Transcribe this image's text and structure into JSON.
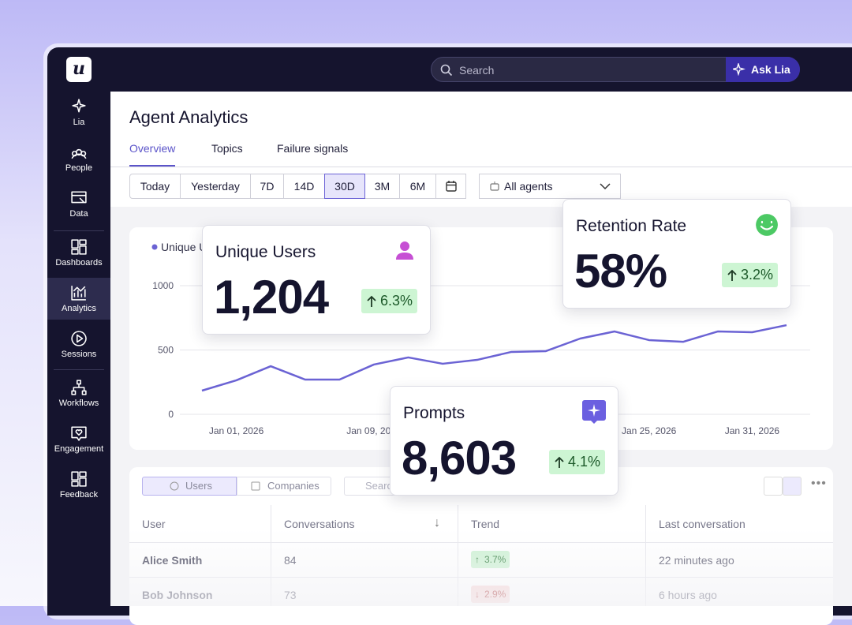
{
  "app": {
    "logo": "u",
    "search_placeholder": "Search",
    "ask_button": "Ask Lia"
  },
  "sidebar": {
    "items": [
      "Lia",
      "People",
      "Data",
      "Dashboards",
      "Analytics",
      "Sessions",
      "Workflows",
      "Engagement",
      "Feedback"
    ],
    "active": "Analytics"
  },
  "header": {
    "title": "Agent Analytics",
    "tabs": [
      "Overview",
      "Topics",
      "Failure signals"
    ],
    "active_tab": "Overview"
  },
  "filters": {
    "ranges": [
      "Today",
      "Yesterday",
      "7D",
      "14D",
      "30D",
      "3M",
      "6M"
    ],
    "active_range": "30D",
    "agent_select": "All agents"
  },
  "chart_data": {
    "type": "line",
    "categories": [
      null,
      "Jan 01, 2026",
      null,
      null,
      null,
      "Jan 09, 2026",
      null,
      null,
      null,
      null,
      null,
      null,
      null,
      "Jan 25, 2026",
      null,
      null,
      "Jan 31, 2026",
      null
    ],
    "series": [
      {
        "name": "Unique Users",
        "color": "#6b63d4",
        "values": [
          184,
          264,
          374,
          270,
          270,
          387,
          442,
          393,
          423,
          485,
          491,
          589,
          644,
          577,
          564,
          644,
          638,
          693
        ]
      }
    ],
    "ylim": [
      0,
      1000
    ],
    "yticks": [
      0,
      500,
      1000
    ],
    "grid": true
  },
  "kpis": [
    {
      "title": "Unique Users",
      "value": "1,204",
      "change": "6.3%",
      "direction": "up"
    },
    {
      "title": "Retention Rate",
      "value": "58%",
      "change": "3.2%",
      "direction": "up"
    },
    {
      "title": "Prompts",
      "value": "8,603",
      "change": "4.1%",
      "direction": "up"
    }
  ],
  "table": {
    "tabs": [
      "Users",
      "Companies"
    ],
    "active_tab": "Users",
    "search_placeholder": "Search",
    "columns": [
      "User",
      "Conversations",
      "Trend",
      "Last conversation"
    ],
    "rows": [
      [
        "Alice Smith",
        84,
        "3.7%",
        "22 minutes ago"
      ],
      [
        "Bob Johnson",
        73,
        "2.9%",
        "6 hours ago"
      ]
    ],
    "trend_directions": [
      "up",
      "down"
    ]
  }
}
